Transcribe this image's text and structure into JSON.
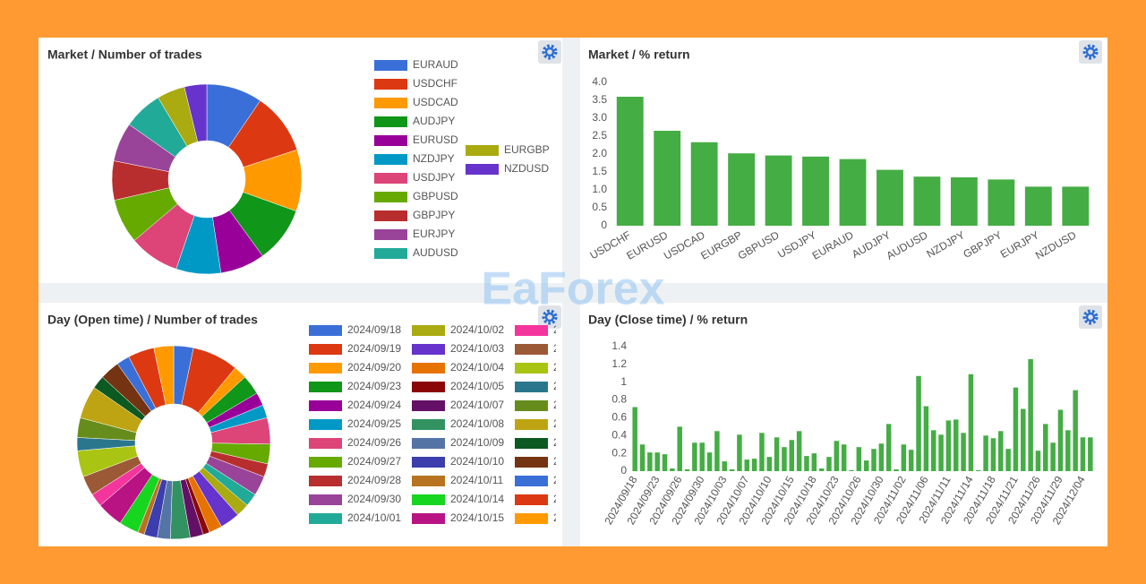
{
  "watermark": "EaForex",
  "chart_data": [
    {
      "type": "pie",
      "title": "Market / Number of trades",
      "labels": [
        "EURAUD",
        "USDCHF",
        "USDCAD",
        "AUDJPY",
        "EURUSD",
        "NZDJPY",
        "USDJPY",
        "GBPUSD",
        "GBPJPY",
        "EURJPY",
        "AUDUSD",
        "EURGBP",
        "NZDUSD"
      ],
      "values": [
        10,
        11,
        11,
        10,
        8,
        8,
        9,
        8,
        7,
        7,
        7,
        5,
        4
      ],
      "colors": [
        "#3a6fd8",
        "#dc3912",
        "#ff9900",
        "#109618",
        "#990099",
        "#0099c6",
        "#dd4477",
        "#66aa00",
        "#b82e2e",
        "#994499",
        "#22aa99",
        "#aaaa11",
        "#6633cc"
      ]
    },
    {
      "type": "bar",
      "title": "Market / % return",
      "categories": [
        "USDCHF",
        "EURUSD",
        "USDCAD",
        "EURGBP",
        "GBPUSD",
        "USDJPY",
        "EURAUD",
        "AUDJPY",
        "AUDUSD",
        "NZDJPY",
        "GBPJPY",
        "EURJPY",
        "NZDUSD"
      ],
      "values": [
        3.6,
        2.65,
        2.33,
        2.02,
        1.96,
        1.93,
        1.86,
        1.56,
        1.37,
        1.35,
        1.29,
        1.09,
        1.09
      ],
      "color": "#44ad44",
      "ylim": [
        0,
        4
      ],
      "yticks": [
        0,
        0.5,
        {
          "value": 1,
          "label": "1.0"
        },
        1.5,
        {
          "value": 2,
          "label": "2.0"
        },
        2.5,
        {
          "value": 3,
          "label": "3.0"
        },
        3.5,
        {
          "value": 4,
          "label": "4.0"
        }
      ]
    },
    {
      "type": "pie",
      "title": "Day (Open time) / Number of trades",
      "labels": [
        "2024/09/18",
        "2024/09/19",
        "2024/09/20",
        "2024/09/23",
        "2024/09/24",
        "2024/09/25",
        "2024/09/26",
        "2024/09/27",
        "2024/09/28",
        "2024/09/30",
        "2024/10/01",
        "2024/10/02",
        "2024/10/03",
        "2024/10/04",
        "2024/10/05",
        "2024/10/07",
        "2024/10/08",
        "2024/10/09",
        "2024/10/10",
        "2024/10/11",
        "2024/10/14",
        "2024/10/15",
        "2",
        "2",
        "2",
        "2",
        "2",
        "2",
        "2",
        "2",
        "2",
        "2",
        "2"
      ],
      "values": [
        3,
        7,
        2,
        3,
        2,
        2,
        4,
        3,
        2,
        3,
        2,
        2,
        3,
        2,
        1,
        2,
        3,
        2,
        2,
        1,
        3,
        4,
        2,
        3,
        4,
        2,
        3,
        5,
        2,
        3,
        2,
        4,
        3
      ],
      "colors": [
        "#3a6fd8",
        "#dc3912",
        "#ff9900",
        "#109618",
        "#990099",
        "#0099c6",
        "#dd4477",
        "#66aa00",
        "#b82e2e",
        "#994499",
        "#22aa99",
        "#aaaa11",
        "#6633cc",
        "#e67300",
        "#8b0707",
        "#651067",
        "#329262",
        "#5574a6",
        "#3b3eac",
        "#b77322",
        "#16d620",
        "#b91383",
        "#f4359e",
        "#9c5935",
        "#a9c413",
        "#2a778d",
        "#668d1c",
        "#bea413",
        "#0c5922",
        "#743411",
        "#3a6fd8",
        "#dc3912",
        "#ff9900"
      ]
    },
    {
      "type": "bar",
      "title": "Day (Close time) / % return",
      "categories": [
        "2024/09/18",
        null,
        null,
        "2024/09/23",
        null,
        null,
        "2024/09/26",
        null,
        null,
        "2024/09/30",
        null,
        null,
        "2024/10/03",
        null,
        null,
        "2024/10/07",
        null,
        null,
        "2024/10/10",
        null,
        null,
        "2024/10/15",
        null,
        null,
        "2024/10/18",
        null,
        null,
        "2024/10/23",
        null,
        null,
        "2024/10/26",
        null,
        null,
        "2024/10/30",
        null,
        null,
        "2024/11/02",
        null,
        null,
        "2024/11/06",
        null,
        null,
        "2024/11/11",
        null,
        null,
        "2024/11/14",
        null,
        null,
        "2024/11/18",
        null,
        null,
        "2024/11/21",
        null,
        null,
        "2024/11/26",
        null,
        null,
        "2024/11/29",
        null,
        null,
        "2024/12/04",
        null
      ],
      "values": [
        0.72,
        0.3,
        0.21,
        0.21,
        0.19,
        0.03,
        0.5,
        0.02,
        0.32,
        0.32,
        0.21,
        0.45,
        0.11,
        0.02,
        0.41,
        0.13,
        0.14,
        0.43,
        0.16,
        0.38,
        0.27,
        0.35,
        0.45,
        0.17,
        0.2,
        0.03,
        0.16,
        0.34,
        0.3,
        0.01,
        0.27,
        0.12,
        0.25,
        0.31,
        0.53,
        0.02,
        0.3,
        0.24,
        1.07,
        0.73,
        0.46,
        0.41,
        0.57,
        0.58,
        0.43,
        1.09,
        0.01,
        0.4,
        0.37,
        0.45,
        0.25,
        0.94,
        0.7,
        1.26,
        0.23,
        0.53,
        0.32,
        0.69,
        0.46,
        0.91,
        0.38,
        0.38
      ],
      "color": "#44ad44",
      "ylim": [
        0,
        1.4
      ],
      "yticks": [
        0,
        0.2,
        0.4,
        0.6,
        0.8,
        1,
        1.2,
        1.4
      ]
    }
  ]
}
